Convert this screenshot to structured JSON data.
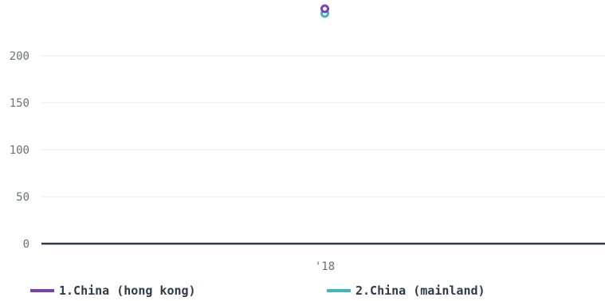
{
  "chart_data": {
    "type": "line",
    "x": [
      "'18"
    ],
    "yticks": [
      0,
      50,
      100,
      150,
      200
    ],
    "ylim": [
      0,
      250
    ],
    "grid": true,
    "legend_position": "bottom",
    "series": [
      {
        "name": "1.China (hong kong)",
        "values": [
          250
        ],
        "color": "#7a3fbf"
      },
      {
        "name": "2.China (mainland)",
        "values": [
          245
        ],
        "color": "#3cb8c0"
      }
    ]
  },
  "colors": {
    "grid": "#e6e9ec",
    "baseline": "#2f3a46",
    "tick_text": "#6b7075"
  }
}
